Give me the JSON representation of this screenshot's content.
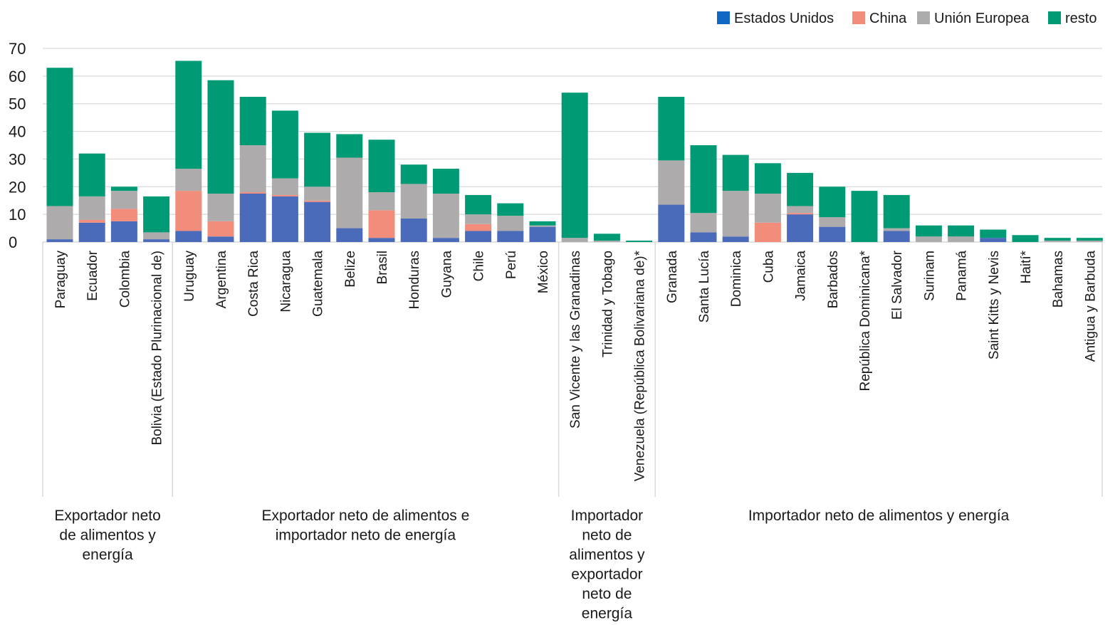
{
  "chart_data": {
    "type": "bar",
    "stacked": true,
    "ylim": [
      0,
      70
    ],
    "yticks": [
      0,
      10,
      20,
      30,
      40,
      50,
      60,
      70
    ],
    "grid": true,
    "legend_position": "top-right",
    "series": [
      {
        "name": "Estados Unidos",
        "color": "#4a6bba"
      },
      {
        "name": "China",
        "color": "#f28c7b"
      },
      {
        "name": "Unión Europea",
        "color": "#adabac"
      },
      {
        "name": "resto",
        "color": "#009a74"
      }
    ],
    "legend": [
      {
        "name": "Estados Unidos",
        "color": "#1068c4"
      },
      {
        "name": "China",
        "color": "#f28c7b"
      },
      {
        "name": "Unión Europea",
        "color": "#adabac"
      },
      {
        "name": "resto",
        "color": "#009a74"
      }
    ],
    "groups": [
      {
        "label_lines": [
          "Exportador neto",
          "de alimentos y",
          "energía"
        ],
        "categories": [
          {
            "name": "Paraguay",
            "values": [
              1,
              0,
              12,
              50
            ]
          },
          {
            "name": "Ecuador",
            "values": [
              7,
              1,
              8.5,
              15.5
            ]
          },
          {
            "name": "Colombia",
            "values": [
              7.5,
              4.5,
              6.5,
              1.5
            ]
          },
          {
            "name": "Bolivia (Estado Plurinacional de)",
            "values": [
              1,
              0,
              2.5,
              13
            ]
          }
        ]
      },
      {
        "label_lines": [
          "Exportador neto de alimentos e",
          "importador neto de energía"
        ],
        "categories": [
          {
            "name": "Uruguay",
            "values": [
              4,
              14.5,
              8,
              39
            ]
          },
          {
            "name": "Argentina",
            "values": [
              2,
              5.5,
              10,
              41
            ]
          },
          {
            "name": "Costa Rica",
            "values": [
              17.5,
              0.5,
              17,
              17.5
            ]
          },
          {
            "name": "Nicaragua",
            "values": [
              16.5,
              0.5,
              6,
              24.5
            ]
          },
          {
            "name": "Guatemala",
            "values": [
              14.5,
              0.5,
              5,
              19.5
            ]
          },
          {
            "name": "Belize",
            "values": [
              5,
              0,
              25.5,
              8.5
            ]
          },
          {
            "name": "Brasil",
            "values": [
              1.5,
              10,
              6.5,
              19
            ]
          },
          {
            "name": "Honduras",
            "values": [
              8.5,
              0,
              12.5,
              7
            ]
          },
          {
            "name": "Guyana",
            "values": [
              1.5,
              0,
              16,
              9
            ]
          },
          {
            "name": "Chile",
            "values": [
              4,
              2.5,
              3.5,
              7
            ]
          },
          {
            "name": "Perú",
            "values": [
              4,
              0,
              5.5,
              4.5
            ]
          },
          {
            "name": "México",
            "values": [
              5.5,
              0,
              0.5,
              1.5
            ]
          }
        ]
      },
      {
        "label_lines": [
          "Importador",
          "neto de",
          "alimentos y",
          "exportador",
          "neto de",
          "energía"
        ],
        "categories": [
          {
            "name": "San Vicente y las Granadinas",
            "values": [
              0,
              0,
              1.5,
              52.5
            ]
          },
          {
            "name": "Trinidad y Tobago",
            "values": [
              0,
              0,
              0.5,
              2.5
            ]
          },
          {
            "name": "Venezuela (República Bolivariana de)*",
            "values": [
              0,
              0,
              0,
              0.5
            ]
          }
        ]
      },
      {
        "label_lines": [
          "Importador neto de alimentos y energía"
        ],
        "categories": [
          {
            "name": "Granada",
            "values": [
              13.5,
              0,
              16,
              23
            ]
          },
          {
            "name": "Santa Lucía",
            "values": [
              3.5,
              0,
              7,
              24.5
            ]
          },
          {
            "name": "Dominica",
            "values": [
              2,
              0,
              16.5,
              13
            ]
          },
          {
            "name": "Cuba",
            "values": [
              0,
              7,
              10.5,
              11
            ]
          },
          {
            "name": "Jamaica",
            "values": [
              10,
              0.5,
              2.5,
              12
            ]
          },
          {
            "name": "Barbados",
            "values": [
              5.5,
              0,
              3.5,
              11
            ]
          },
          {
            "name": "República Dominicana*",
            "values": [
              0,
              0,
              0,
              18.5
            ]
          },
          {
            "name": "El Salvador",
            "values": [
              4,
              0,
              1,
              12
            ]
          },
          {
            "name": "Surinam",
            "values": [
              0,
              0,
              2,
              4
            ]
          },
          {
            "name": "Panamá",
            "values": [
              0,
              0,
              2,
              4
            ]
          },
          {
            "name": "Saint Kitts y Nevis",
            "values": [
              1.5,
              0,
              0,
              3
            ]
          },
          {
            "name": "Haití*",
            "values": [
              0,
              0,
              0,
              2.5
            ]
          },
          {
            "name": "Bahamas",
            "values": [
              0,
              0,
              0.5,
              1
            ]
          },
          {
            "name": "Antigua y Barbuda",
            "values": [
              0,
              0,
              0.5,
              1
            ]
          }
        ]
      }
    ]
  }
}
